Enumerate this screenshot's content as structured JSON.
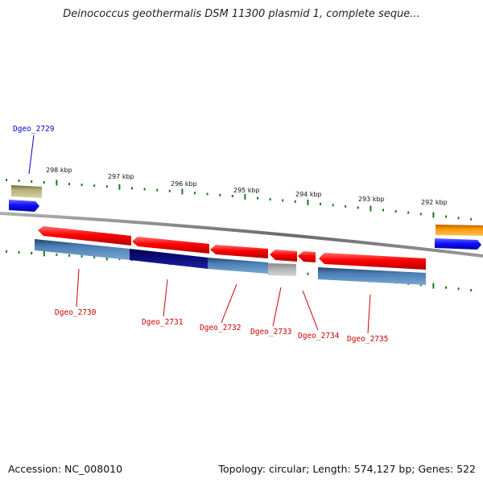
{
  "header": {
    "title": "Deinococcus geothermalis DSM 11300 plasmid 1, complete seque..."
  },
  "footer": {
    "accession": "Accession: NC_008010",
    "topology": "Topology: circular; Length: 574,127 bp; Genes: 522"
  },
  "scale_labels": [
    "298 kbp",
    "297 kbp",
    "296 kbp",
    "295 kbp",
    "294 kbp",
    "293 kbp",
    "292 kbp"
  ],
  "genes": [
    {
      "name": "Dgeo_2729",
      "color": "#000080",
      "strand": "+"
    },
    {
      "name": "Dgeo_2730",
      "color": "#cc0000",
      "strand": "-"
    },
    {
      "name": "Dgeo_2731",
      "color": "#cc0000",
      "strand": "-"
    },
    {
      "name": "Dgeo_2732",
      "color": "#cc0000",
      "strand": "-"
    },
    {
      "name": "Dgeo_2733",
      "color": "#cc0000",
      "strand": "-"
    },
    {
      "name": "Dgeo_2734",
      "color": "#cc0000",
      "strand": "-"
    },
    {
      "name": "Dgeo_2735",
      "color": "#cc0000",
      "strand": "-"
    }
  ],
  "colors": {
    "backbone": "#7f7f7f",
    "tick": "#1a7a1a",
    "gene_forward": "#1010ff",
    "gene_reverse": "#ff0000",
    "cds_steelblue": "#4a7fb5",
    "cds_navy": "#0a0a7a",
    "cds_grey": "#b0b0b0",
    "cds_olive": "#b5b07a",
    "cds_orange": "#ff9900"
  }
}
